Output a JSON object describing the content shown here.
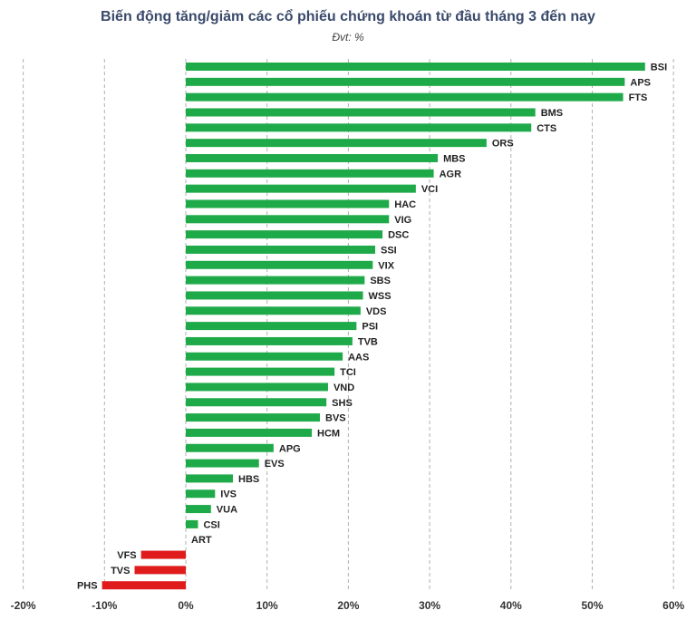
{
  "chart_data": {
    "type": "bar",
    "orientation": "horizontal",
    "title": "Biến động tăng/giảm các cổ phiếu chứng khoán từ đầu tháng 3 đến nay",
    "subtitle": "Đvt: %",
    "xlim": [
      -20,
      60
    ],
    "xticks": [
      -20,
      -10,
      0,
      10,
      20,
      30,
      40,
      50,
      60
    ],
    "xtick_labels": [
      "-20%",
      "-10%",
      "0%",
      "10%",
      "20%",
      "30%",
      "40%",
      "50%",
      "60%"
    ],
    "grid": "vertical dashed",
    "colors": {
      "positive": "#1faa4a",
      "negative": "#e01b1b"
    },
    "categories": [
      "BSI",
      "APS",
      "FTS",
      "BMS",
      "CTS",
      "ORS",
      "MBS",
      "AGR",
      "VCI",
      "HAC",
      "VIG",
      "DSC",
      "SSI",
      "VIX",
      "SBS",
      "WSS",
      "VDS",
      "PSI",
      "TVB",
      "AAS",
      "TCI",
      "VND",
      "SHS",
      "BVS",
      "HCM",
      "APG",
      "EVS",
      "HBS",
      "IVS",
      "VUA",
      "CSI",
      "ART",
      "VFS",
      "TVS",
      "PHS"
    ],
    "values": [
      56.5,
      54,
      53.8,
      43,
      42.5,
      37,
      31,
      30.5,
      28.3,
      25,
      25,
      24.2,
      23.3,
      23,
      22,
      21.8,
      21.5,
      21,
      20.5,
      19.3,
      18.3,
      17.5,
      17.3,
      16.5,
      15.5,
      10.8,
      9,
      5.8,
      3.6,
      3.1,
      1.5,
      0,
      -5.5,
      -6.3,
      -10.3
    ]
  }
}
